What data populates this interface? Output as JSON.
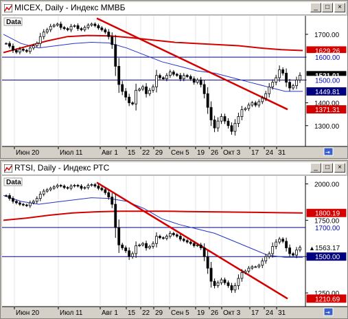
{
  "windows": [
    {
      "title": "MICEX, Daily - Индекс ММВБ",
      "data_label": "Data",
      "buttons": {
        "minimize": "_",
        "maximize": "□",
        "close": "×"
      },
      "x_labels": [
        "Июн 20",
        "Июл 11",
        "Авг 1",
        "15",
        "22",
        "29",
        "Сен 5",
        "19",
        "26",
        "Окт 3",
        "17",
        "24",
        "31"
      ],
      "y_ticks": [
        "1700.00",
        "1600.00",
        "1500.00",
        "1400.00",
        "1300.00"
      ],
      "price_labels": [
        {
          "text": "1629.26",
          "value": 1629.26,
          "bg": "#d40000",
          "fg": "#ffffff"
        },
        {
          "text": "1600.00",
          "value": 1600.0,
          "bg": "#ffffff",
          "fg": "#0000c0"
        },
        {
          "text": "1521.01",
          "value": 1521.01,
          "bg": "#000000",
          "fg": "#ffffff"
        },
        {
          "text": "1500.00",
          "value": 1500.0,
          "bg": "#ffffff",
          "fg": "#0000c0"
        },
        {
          "text": "1449.81",
          "value": 1449.81,
          "bg": "#000080",
          "fg": "#ffffff"
        },
        {
          "text": "1371.31",
          "value": 1371.31,
          "bg": "#d40000",
          "fg": "#ffffff"
        }
      ]
    },
    {
      "title": "RTSI, Daily - Индекс РТС",
      "data_label": "Data",
      "buttons": {
        "minimize": "_",
        "maximize": "□",
        "close": "×"
      },
      "x_labels": [
        "Июн 20",
        "Июл 11",
        "Авг 1",
        "15",
        "22",
        "29",
        "Сен 5",
        "19",
        "26",
        "Окт 3",
        "17",
        "24",
        "31"
      ],
      "y_ticks": [
        "2000.00",
        "1750.00",
        "1500.00",
        "1250.00"
      ],
      "price_labels": [
        {
          "text": "1800.19",
          "value": 1800.19,
          "bg": "#d40000",
          "fg": "#ffffff"
        },
        {
          "text": "1700.00",
          "value": 1700.0,
          "bg": "#ffffff",
          "fg": "#0000c0"
        },
        {
          "text": "1563.17",
          "value": 1563.17,
          "bg": "#ffffff",
          "fg": "#000000",
          "arrow": true
        },
        {
          "text": "1500.00",
          "value": 1500.0,
          "bg": "#000080",
          "fg": "#ffffff"
        },
        {
          "text": "1210.69",
          "value": 1210.69,
          "bg": "#d40000",
          "fg": "#ffffff"
        }
      ]
    }
  ],
  "chart_data": [
    {
      "type": "candlestick",
      "title": "MICEX, Daily - Индекс ММВБ",
      "ylim": [
        1215,
        1775
      ],
      "x_tick_labels": [
        "Июн 20",
        "Июл 11",
        "Авг 1",
        "15",
        "22",
        "29",
        "Сен 5",
        "19",
        "26",
        "Окт 3",
        "17",
        "24",
        "31"
      ],
      "close": [
        1660,
        1648,
        1630,
        1622,
        1635,
        1630,
        1625,
        1640,
        1650,
        1660,
        1690,
        1710,
        1720,
        1735,
        1740,
        1745,
        1730,
        1725,
        1720,
        1735,
        1738,
        1725,
        1720,
        1730,
        1740,
        1745,
        1738,
        1728,
        1720,
        1710,
        1690,
        1655,
        1560,
        1480,
        1450,
        1425,
        1400,
        1395,
        1455,
        1460,
        1470,
        1440,
        1455,
        1470,
        1520,
        1510,
        1505,
        1520,
        1535,
        1525,
        1520,
        1505,
        1520,
        1515,
        1505,
        1490,
        1500,
        1480,
        1440,
        1380,
        1325,
        1290,
        1320,
        1340,
        1320,
        1300,
        1275,
        1310,
        1340,
        1370,
        1375,
        1390,
        1400,
        1390,
        1405,
        1420,
        1440,
        1470,
        1490,
        1510,
        1545,
        1530,
        1490,
        1465,
        1475,
        1500,
        1521
      ],
      "ma_blue": {
        "approx_values": [
          1700,
          1660,
          1640,
          1650,
          1660,
          1665,
          1662,
          1640,
          1610,
          1580,
          1560,
          1540,
          1530,
          1510,
          1490,
          1470,
          1450,
          1450
        ]
      },
      "ma_red": {
        "approx_values": [
          1620,
          1645,
          1670,
          1690,
          1695,
          1693,
          1685,
          1675,
          1665,
          1660,
          1655,
          1650,
          1640,
          1633,
          1629
        ]
      },
      "horizontal_lines": [
        1600,
        1500
      ],
      "trendline": {
        "from": 1770,
        "to": 1371
      }
    },
    {
      "type": "candlestick",
      "title": "RTSI, Daily - Индекс РТС",
      "ylim": [
        1165,
        2045
      ],
      "x_tick_labels": [
        "Июн 20",
        "Июл 11",
        "Авг 1",
        "15",
        "22",
        "29",
        "Сен 5",
        "19",
        "26",
        "Окт 3",
        "17",
        "24",
        "31"
      ],
      "close": [
        1920,
        1900,
        1880,
        1870,
        1860,
        1855,
        1850,
        1870,
        1880,
        1900,
        1930,
        1950,
        1960,
        1970,
        1980,
        1990,
        1985,
        1975,
        1970,
        1985,
        1990,
        1985,
        1970,
        1975,
        1990,
        1995,
        1985,
        1970,
        1960,
        1940,
        1910,
        1860,
        1700,
        1580,
        1560,
        1540,
        1500,
        1520,
        1575,
        1580,
        1590,
        1560,
        1570,
        1590,
        1640,
        1630,
        1625,
        1640,
        1660,
        1650,
        1640,
        1620,
        1610,
        1600,
        1590,
        1575,
        1580,
        1560,
        1500,
        1420,
        1330,
        1300,
        1320,
        1340,
        1320,
        1300,
        1270,
        1300,
        1350,
        1390,
        1400,
        1420,
        1430,
        1430,
        1440,
        1470,
        1500,
        1520,
        1570,
        1600,
        1620,
        1605,
        1560,
        1520,
        1510,
        1545,
        1563
      ],
      "ma_blue": {
        "approx_values": [
          1920,
          1880,
          1860,
          1875,
          1890,
          1905,
          1900,
          1880,
          1830,
          1760,
          1720,
          1690,
          1660,
          1610,
          1560,
          1510,
          1495,
          1495
        ]
      },
      "ma_red": {
        "approx_values": [
          1750,
          1765,
          1785,
          1800,
          1808,
          1812,
          1812,
          1812,
          1810,
          1808,
          1806,
          1804,
          1802,
          1800
        ]
      },
      "horizontal_lines": [
        1700,
        1500
      ],
      "trendline": {
        "from": 2010,
        "to": 1210
      }
    }
  ]
}
